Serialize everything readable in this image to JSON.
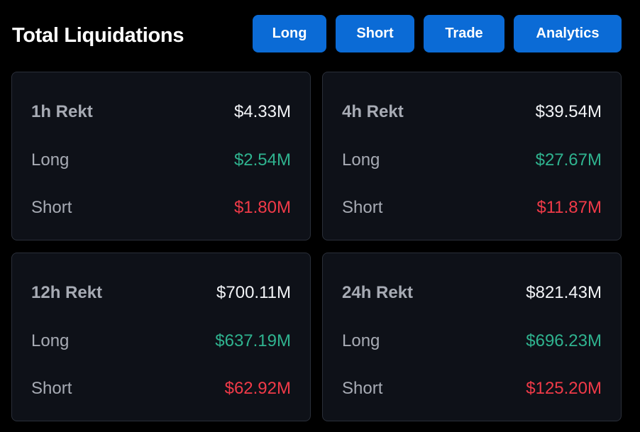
{
  "header": {
    "title": "Total Liquidations"
  },
  "tabs": [
    {
      "label": "Long"
    },
    {
      "label": "Short"
    },
    {
      "label": "Trade"
    },
    {
      "label": "Analytics"
    }
  ],
  "cards": [
    {
      "period_label": "1h Rekt",
      "total": "$4.33M",
      "long_label": "Long",
      "long_value": "$2.54M",
      "short_label": "Short",
      "short_value": "$1.80M"
    },
    {
      "period_label": "4h Rekt",
      "total": "$39.54M",
      "long_label": "Long",
      "long_value": "$27.67M",
      "short_label": "Short",
      "short_value": "$11.87M"
    },
    {
      "period_label": "12h Rekt",
      "total": "$700.11M",
      "long_label": "Long",
      "long_value": "$637.19M",
      "short_label": "Short",
      "short_value": "$62.92M"
    },
    {
      "period_label": "24h Rekt",
      "total": "$821.43M",
      "long_label": "Long",
      "long_value": "$696.23M",
      "short_label": "Short",
      "short_value": "$125.20M"
    }
  ],
  "colors": {
    "accent": "#0b6bd6",
    "long": "#2fb38f",
    "short": "#f03a48",
    "card_bg": "#0e1118"
  }
}
